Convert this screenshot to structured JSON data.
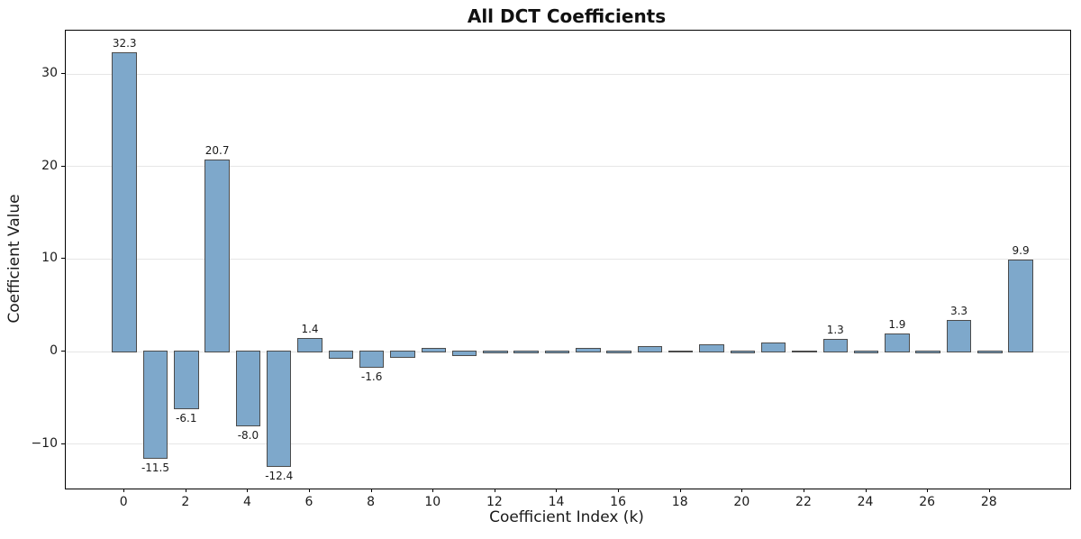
{
  "chart_data": {
    "type": "bar",
    "title": "All DCT Coefficients",
    "xlabel": "Coefficient Index (k)",
    "ylabel": "Coefficient Value",
    "x": [
      0,
      1,
      2,
      3,
      4,
      5,
      6,
      7,
      8,
      9,
      10,
      11,
      12,
      13,
      14,
      15,
      16,
      17,
      18,
      19,
      20,
      21,
      22,
      23,
      24,
      25,
      26,
      27,
      28,
      29
    ],
    "values": [
      32.3,
      -11.5,
      -6.1,
      20.7,
      -8.0,
      -12.4,
      1.4,
      -0.7,
      -1.6,
      -0.6,
      0.3,
      -0.4,
      -0.1,
      -0.1,
      -0.1,
      0.3,
      -0.1,
      0.5,
      0.05,
      0.7,
      -0.05,
      0.9,
      0.05,
      1.3,
      -0.05,
      1.9,
      -0.05,
      3.3,
      -0.05,
      9.9
    ],
    "bar_labels": [
      "32.3",
      "-11.5",
      "-6.1",
      "20.7",
      "-8.0",
      "-12.4",
      "1.4",
      null,
      "-1.6",
      null,
      null,
      null,
      null,
      null,
      null,
      null,
      null,
      null,
      null,
      null,
      null,
      null,
      null,
      "1.3",
      null,
      "1.9",
      null,
      "3.3",
      null,
      "9.9"
    ],
    "xlim": [
      -1.9,
      30.6
    ],
    "ylim": [
      -14.8,
      34.7
    ],
    "xticks": [
      0,
      2,
      4,
      6,
      8,
      10,
      12,
      14,
      16,
      18,
      20,
      22,
      24,
      26,
      28
    ],
    "xtick_labels": [
      "0",
      "2",
      "4",
      "6",
      "8",
      "10",
      "12",
      "14",
      "16",
      "18",
      "20",
      "22",
      "24",
      "26",
      "28"
    ],
    "yticks": [
      -10,
      0,
      10,
      20,
      30
    ],
    "ytick_labels": [
      "−10",
      "0",
      "10",
      "20",
      "30"
    ],
    "grid": "horizontal-light",
    "legend": "none",
    "bar_width_units": 0.8,
    "colors": {
      "bar_fill": "#7ea8cb",
      "bar_edge": "#4c4c4c",
      "grid": "#e6e6e6",
      "spine": "#000000",
      "text": "#1a1a1a"
    }
  }
}
